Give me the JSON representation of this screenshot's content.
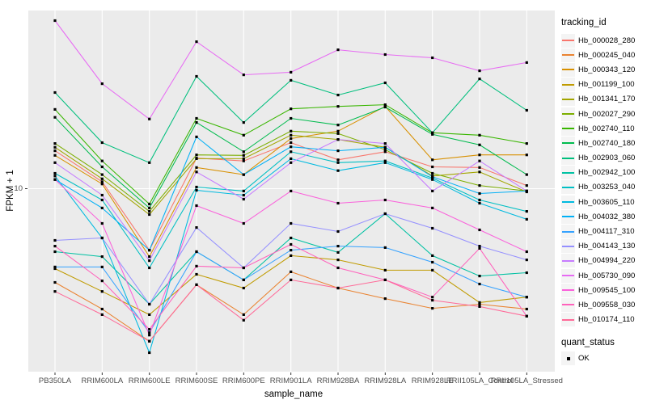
{
  "chart_data": {
    "type": "line",
    "title": "",
    "xlabel": "sample_name",
    "ylabel": "FPKM + 1",
    "y_scale": "log10",
    "y_tick_label": "10",
    "y_breaks": [
      10
    ],
    "ylim": [
      1.1,
      85
    ],
    "grid": "major-white-on-gray",
    "panel_bg": "#EBEBEB",
    "grid_color": "#FFFFFF",
    "tick_color": "#333333",
    "tick_label_color": "#4d4d4d",
    "point_shape": "filled-square",
    "point_color": "#000000",
    "legend_position": "right",
    "categories": [
      "PB350LA",
      "RRIM600LA",
      "RRIM600LE",
      "RRIM600SE",
      "RRIM600PE",
      "RRIM901LA",
      "RRIM928BA",
      "RRIM928LA",
      "RRIM928LE",
      "RRII105LA_Control",
      "RRII105LA_Stressed"
    ],
    "series": [
      {
        "name": "Hb_000028_280",
        "color": "#F8766D",
        "values": [
          16.0,
          10.9,
          4.67,
          14.6,
          14.1,
          17.7,
          14.3,
          15.8,
          13.1,
          13.0,
          10.4
        ]
      },
      {
        "name": "Hb_000245_040",
        "color": "#EA8331",
        "values": [
          3.13,
          2.25,
          1.51,
          3.04,
          2.1,
          3.57,
          2.92,
          2.56,
          2.27,
          2.39,
          2.25
        ]
      },
      {
        "name": "Hb_000343_120",
        "color": "#D89000",
        "values": [
          15.1,
          10.6,
          4.31,
          13.0,
          11.9,
          18.6,
          20.4,
          27.7,
          14.3,
          15.2,
          15.2
        ]
      },
      {
        "name": "Hb_001199_100",
        "color": "#C09B00",
        "values": [
          3.71,
          2.8,
          2.1,
          3.46,
          2.92,
          4.36,
          4.14,
          3.64,
          3.64,
          2.44,
          2.61
        ]
      },
      {
        "name": "Hb_001341_170",
        "color": "#A3A500",
        "values": [
          16.7,
          11.3,
          7.26,
          14.5,
          14.5,
          19.4,
          18.4,
          16.7,
          11.7,
          12.3,
          9.61
        ]
      },
      {
        "name": "Hb_002027_290",
        "color": "#7CAE00",
        "values": [
          17.5,
          11.9,
          7.55,
          15.2,
          15.1,
          20.4,
          19.8,
          16.2,
          12.1,
          10.4,
          9.71
        ]
      },
      {
        "name": "Hb_002740_110",
        "color": "#39B600",
        "values": [
          26.7,
          14.1,
          8.27,
          23.9,
          19.4,
          26.9,
          27.7,
          28.3,
          20.0,
          19.4,
          17.5
        ]
      },
      {
        "name": "Hb_002740_180",
        "color": "#00BB4E",
        "values": [
          24.2,
          13.1,
          7.87,
          22.7,
          15.8,
          23.9,
          22.0,
          27.5,
          19.6,
          17.2,
          11.9
        ]
      },
      {
        "name": "Hb_002903_060",
        "color": "#00BF7D",
        "values": [
          32.9,
          17.7,
          13.8,
          40.2,
          22.7,
          38.3,
          31.9,
          37.1,
          20.0,
          39.0,
          26.4
        ]
      },
      {
        "name": "Hb_002942_100",
        "color": "#00C1A3",
        "values": [
          4.58,
          4.31,
          2.39,
          4.58,
          3.23,
          5.43,
          4.54,
          7.33,
          4.36,
          3.39,
          3.53
        ]
      },
      {
        "name": "Hb_003253_040",
        "color": "#00BFC4",
        "values": [
          12.1,
          8.69,
          3.75,
          10.2,
          9.71,
          15.8,
          13.8,
          14.1,
          11.4,
          8.69,
          7.55
        ]
      },
      {
        "name": "Hb_003605_110",
        "color": "#00BAE0",
        "values": [
          11.7,
          5.43,
          1.31,
          9.8,
          9.23,
          14.5,
          12.5,
          13.8,
          11.2,
          8.35,
          6.84
        ]
      },
      {
        "name": "Hb_004032_380",
        "color": "#00B0F6",
        "values": [
          11.2,
          7.87,
          4.67,
          19.0,
          11.9,
          16.8,
          16.0,
          16.7,
          11.6,
          9.42,
          9.71
        ]
      },
      {
        "name": "Hb_004117_310",
        "color": "#35A2FF",
        "values": [
          3.79,
          3.79,
          1.68,
          4.58,
          3.23,
          4.67,
          4.91,
          4.82,
          4.02,
          3.07,
          2.61
        ]
      },
      {
        "name": "Hb_004143_130",
        "color": "#9590FF",
        "values": [
          5.27,
          5.43,
          2.39,
          6.18,
          3.75,
          6.5,
          5.88,
          7.33,
          6.12,
          4.91,
          4.14
        ]
      },
      {
        "name": "Hb_004994_220",
        "color": "#C77CFF",
        "values": [
          13.8,
          9.23,
          4.1,
          12.3,
          8.78,
          13.8,
          18.4,
          17.5,
          9.71,
          14.1,
          9.71
        ]
      },
      {
        "name": "Hb_005730_090",
        "color": "#E76BF3",
        "values": [
          80.2,
          36.7,
          23.7,
          61.8,
          41.0,
          42.3,
          55.9,
          52.7,
          50.6,
          43.1,
          47.7
        ]
      },
      {
        "name": "Hb_009545_100",
        "color": "#FA62DB",
        "values": [
          11.2,
          6.5,
          1.63,
          8.1,
          6.5,
          9.71,
          8.35,
          8.69,
          7.87,
          6.0,
          4.58
        ]
      },
      {
        "name": "Hb_009558_030",
        "color": "#FF62BC",
        "values": [
          4.91,
          3.19,
          1.75,
          3.83,
          3.75,
          5.01,
          3.75,
          3.23,
          2.61,
          4.77,
          2.06
        ]
      },
      {
        "name": "Hb_010174_110",
        "color": "#FF6A98",
        "values": [
          2.8,
          2.1,
          1.51,
          3.04,
          1.96,
          3.23,
          2.92,
          3.23,
          2.51,
          2.32,
          2.06
        ]
      }
    ],
    "legend": {
      "tracking_id_title": "tracking_id",
      "quant_status_title": "quant_status",
      "quant_status_value": "OK"
    }
  }
}
